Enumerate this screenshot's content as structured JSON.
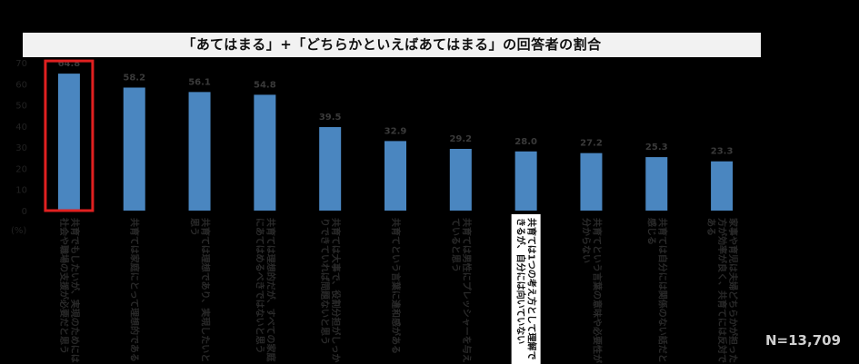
{
  "chart_data": {
    "type": "bar",
    "title": "「あてはまる」+「どちらかといえばあてはまる」の回答者の割合",
    "ylabel": "(%)",
    "ylim": [
      0,
      70
    ],
    "yticks": [
      0,
      10,
      20,
      30,
      40,
      50,
      60,
      70
    ],
    "grid": false,
    "legend": "none",
    "categories": [
      "共育でもしたいが、実現のためには社会や職場の支援が必要だと思う",
      "共育ては家庭にとって理想的である",
      "共育ては理想であり、実現したいと思う",
      "共育ては理想的だが、すべての家庭にあてはめるべきではないと思う",
      "共育ては大事で、役割分担がしっかりできていれば問題ないと思う",
      "共育てという言葉に違和感がある",
      "共育ては男性にプレッシャーを与えていると思う",
      "共育ては1つの考え方として理解できるが、自分には向いていない",
      "共育てという言葉の意味や必要性が分からない",
      "共育ては自分には関係のない話だと感じる",
      "家事や育児は夫婦どちらかが担った方が効率が良く、共育てには反対である"
    ],
    "values": [
      64.8,
      58.2,
      56.1,
      54.8,
      39.5,
      32.9,
      29.2,
      28.0,
      27.2,
      25.3,
      23.3
    ],
    "highlighted_index": 0,
    "highlight_color": "#e02020",
    "bar_color": "#4a86c0",
    "background_color": "#000000",
    "annotation": "N=13,709"
  }
}
